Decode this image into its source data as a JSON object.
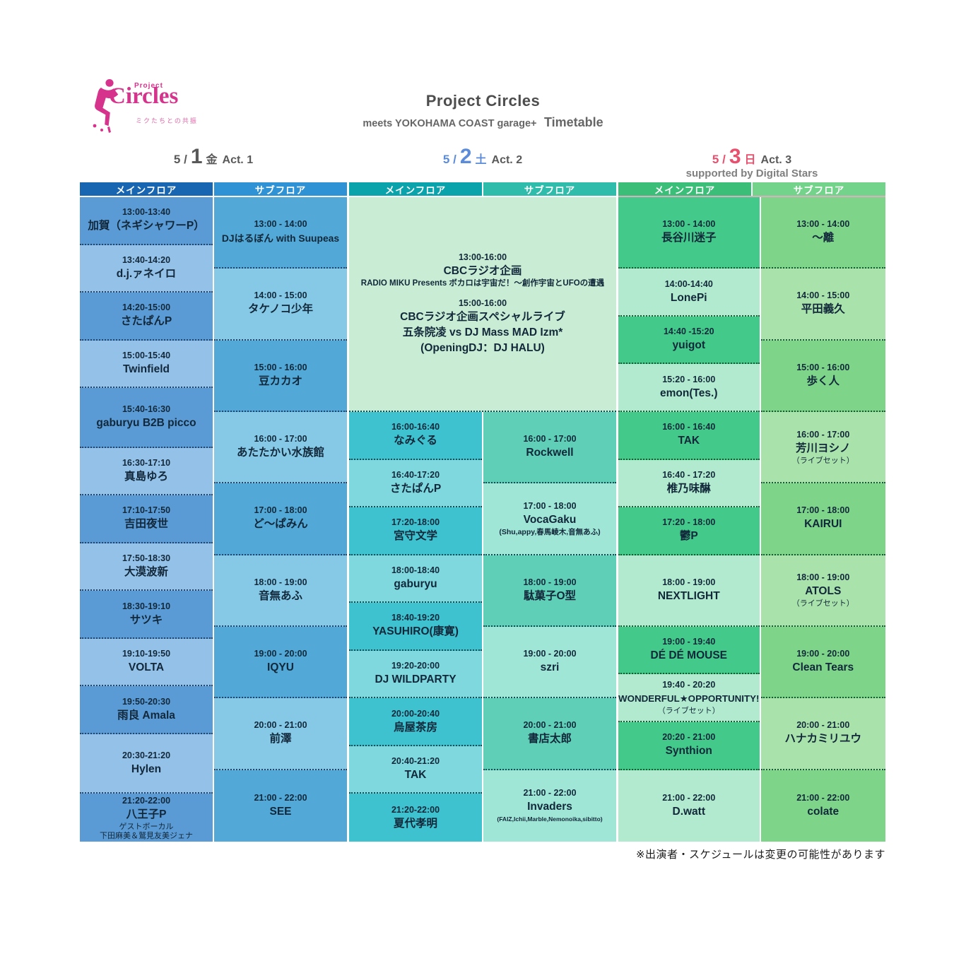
{
  "page": {
    "title": "Project Circles",
    "subtitle_prefix": "meets YOKOHAMA COAST garage+",
    "subtitle_emphasis": "Timetable",
    "footer_note": "※出演者・スケジュールは変更の可能性があります"
  },
  "logo": {
    "project": "Project",
    "name": "Circles",
    "tagline": "ミクたちとの共振",
    "color": "#d6348c"
  },
  "floors": {
    "main": "メインフロア",
    "sub": "サブフロア"
  },
  "days": [
    {
      "label": {
        "prefix": "5 /",
        "num": "1",
        "week": "金",
        "act": "Act. 1",
        "date_color": "#595959",
        "support": ""
      },
      "palette": {
        "header_main": "#1865b2",
        "header_sub": "#2f92d4",
        "underline": "#ffffff",
        "main_dark": "#5b9bd5",
        "main_light": "#94c1e8",
        "sub_dark": "#52a8d6",
        "sub_light": "#85c9e6",
        "divider": "#23456b"
      },
      "merged": null,
      "main": [
        {
          "time": "13:00-13:40",
          "name": "加賀（ネギシャワーP）"
        },
        {
          "time": "13:40-14:20",
          "name": "d.j.ァネイロ"
        },
        {
          "time": "14:20-15:00",
          "name": "さたぱんP"
        },
        {
          "time": "15:00-15:40",
          "name": "Twinfield"
        },
        {
          "time": "15:40-16:30",
          "name": "gaburyu B2B picco"
        },
        {
          "time": "16:30-17:10",
          "name": "真島ゆろ"
        },
        {
          "time": "17:10-17:50",
          "name": "吉田夜世"
        },
        {
          "time": "17:50-18:30",
          "name": "大漠波新"
        },
        {
          "time": "18:30-19:10",
          "name": "サツキ"
        },
        {
          "time": "19:10-19:50",
          "name": "VOLTA"
        },
        {
          "time": "19:50-20:30",
          "name": "雨良 Amala"
        },
        {
          "time": "20:30-21:20",
          "name": "Hylen"
        },
        {
          "time": "21:20-22:00",
          "name": "八王子P",
          "notes": [
            "ゲストボーカル",
            "下田麻美＆鷲見友美ジェナ"
          ]
        }
      ],
      "sub": [
        {
          "time": "13:00 - 14:00",
          "name": "DJはるぼん with Suupeas"
        },
        {
          "time": "14:00 - 15:00",
          "name": "タケノコ少年"
        },
        {
          "time": "15:00 - 16:00",
          "name": "豆カカオ"
        },
        {
          "time": "16:00 - 17:00",
          "name": "あたたかい水族館"
        },
        {
          "time": "17:00 - 18:00",
          "name": "ど〜ぱみん"
        },
        {
          "time": "18:00 - 19:00",
          "name": "音無あふ"
        },
        {
          "time": "19:00 - 20:00",
          "name": "IQYU"
        },
        {
          "time": "20:00 - 21:00",
          "name": "前澤"
        },
        {
          "time": "21:00 - 22:00",
          "name": "SEE"
        }
      ]
    },
    {
      "label": {
        "prefix": "5 /",
        "num": "2",
        "week": "土",
        "act": "Act. 2",
        "date_color": "#5b8bd9",
        "support": ""
      },
      "palette": {
        "header_main": "#0aa2ab",
        "header_sub": "#2fbcab",
        "underline": "#ffffff",
        "main_dark": "#3ec2cf",
        "main_light": "#7ed8de",
        "sub_dark": "#5fd0b7",
        "sub_light": "#9fe6d6",
        "divider": "#0b4d52",
        "merged_bg": "#c9edd4"
      },
      "merged": {
        "time": "13:00-16:00",
        "lines": [
          [
            "time",
            "13:00-16:00"
          ],
          [
            "name",
            "CBCラジオ企画"
          ],
          [
            "note",
            "RADIO MIKU Presents ボカロは宇宙だ！〜創作宇宙とUFOの遭遇"
          ],
          [
            "gap",
            ""
          ],
          [
            "time",
            "15:00-16:00"
          ],
          [
            "name",
            "CBCラジオ企画スペシャルライブ"
          ],
          [
            "name",
            "五条院凌 vs DJ Mass MAD Izm*"
          ],
          [
            "name",
            "(OpeningDJ：DJ HALU)"
          ]
        ]
      },
      "main": [
        {
          "time": "16:00-16:40",
          "name": "なみぐる"
        },
        {
          "time": "16:40-17:20",
          "name": "さたぱんP"
        },
        {
          "time": "17:20-18:00",
          "name": "宮守文学"
        },
        {
          "time": "18:00-18:40",
          "name": "gaburyu"
        },
        {
          "time": "18:40-19:20",
          "name": "YASUHIRO(康寛)"
        },
        {
          "time": "19:20-20:00",
          "name": "DJ WILDPARTY"
        },
        {
          "time": "20:00-20:40",
          "name": "烏屋茶房"
        },
        {
          "time": "20:40-21:20",
          "name": "TAK"
        },
        {
          "time": "21:20-22:00",
          "name": "夏代孝明"
        }
      ],
      "sub": [
        {
          "time": "16:00 - 17:00",
          "name": "Rockwell"
        },
        {
          "time": "17:00 - 18:00",
          "name": "VocaGaku",
          "notes": [
            "(Shu,appy,春馬崚木,音無あふ)"
          ]
        },
        {
          "time": "18:00 - 19:00",
          "name": "駄菓子O型"
        },
        {
          "time": "19:00 - 20:00",
          "name": "szri"
        },
        {
          "time": "20:00 - 21:00",
          "name": "書店太郎"
        },
        {
          "time": "21:00 - 22:00",
          "name": "Invaders",
          "notes": [
            "(FAIZ,Ichii,Marble,Nemonoika,sibitto)"
          ]
        }
      ]
    },
    {
      "label": {
        "prefix": "5 /",
        "num": "3",
        "week": "日",
        "act": "Act. 3",
        "date_color": "#e8506e",
        "support": "supported by Digital Stars"
      },
      "palette": {
        "header_main": "#3bbf78",
        "header_sub": "#74d38b",
        "underline": "#d8b0bf",
        "main_dark": "#43c98a",
        "main_light": "#b1eace",
        "sub_dark": "#7ed489",
        "sub_light": "#a9e3ab",
        "divider": "#155c33"
      },
      "merged": null,
      "main": [
        {
          "time": "13:00 - 14:00",
          "name": "長谷川迷子"
        },
        {
          "time": "14:00-14:40",
          "name": "LonePi"
        },
        {
          "time": "14:40 -15:20",
          "name": "yuigot"
        },
        {
          "time": "15:20 - 16:00",
          "name": "emon(Tes.)"
        },
        {
          "time": "16:00 - 16:40",
          "name": "TAK"
        },
        {
          "time": "16:40 - 17:20",
          "name": "椎乃味醂"
        },
        {
          "time": "17:20 - 18:00",
          "name": "鬱P"
        },
        {
          "time": "18:00 - 19:00",
          "name": "NEXTLIGHT"
        },
        {
          "time": "19:00 - 19:40",
          "name": "DÉ DÉ MOUSE"
        },
        {
          "time": "19:40 - 20:20",
          "name": "WONDERFUL★OPPORTUNITY!",
          "notes": [
            "（ライブセット）"
          ]
        },
        {
          "time": "20:20 - 21:00",
          "name": "Synthion"
        },
        {
          "time": "21:00 - 22:00",
          "name": "D.watt"
        }
      ],
      "sub": [
        {
          "time": "13:00 - 14:00",
          "name": "〜離"
        },
        {
          "time": "14:00 - 15:00",
          "name": "平田義久"
        },
        {
          "time": "15:00 - 16:00",
          "name": "歩く人"
        },
        {
          "time": "16:00 - 17:00",
          "name": "芳川ヨシノ",
          "notes": [
            "（ライブセット）"
          ]
        },
        {
          "time": "17:00 - 18:00",
          "name": "KAIRUI"
        },
        {
          "time": "18:00 - 19:00",
          "name": "ATOLS",
          "notes": [
            "（ライブセット）"
          ]
        },
        {
          "time": "19:00 - 20:00",
          "name": "Clean Tears"
        },
        {
          "time": "20:00 - 21:00",
          "name": "ハナカミリユウ"
        },
        {
          "time": "21:00 - 22:00",
          "name": "colate"
        }
      ]
    }
  ]
}
